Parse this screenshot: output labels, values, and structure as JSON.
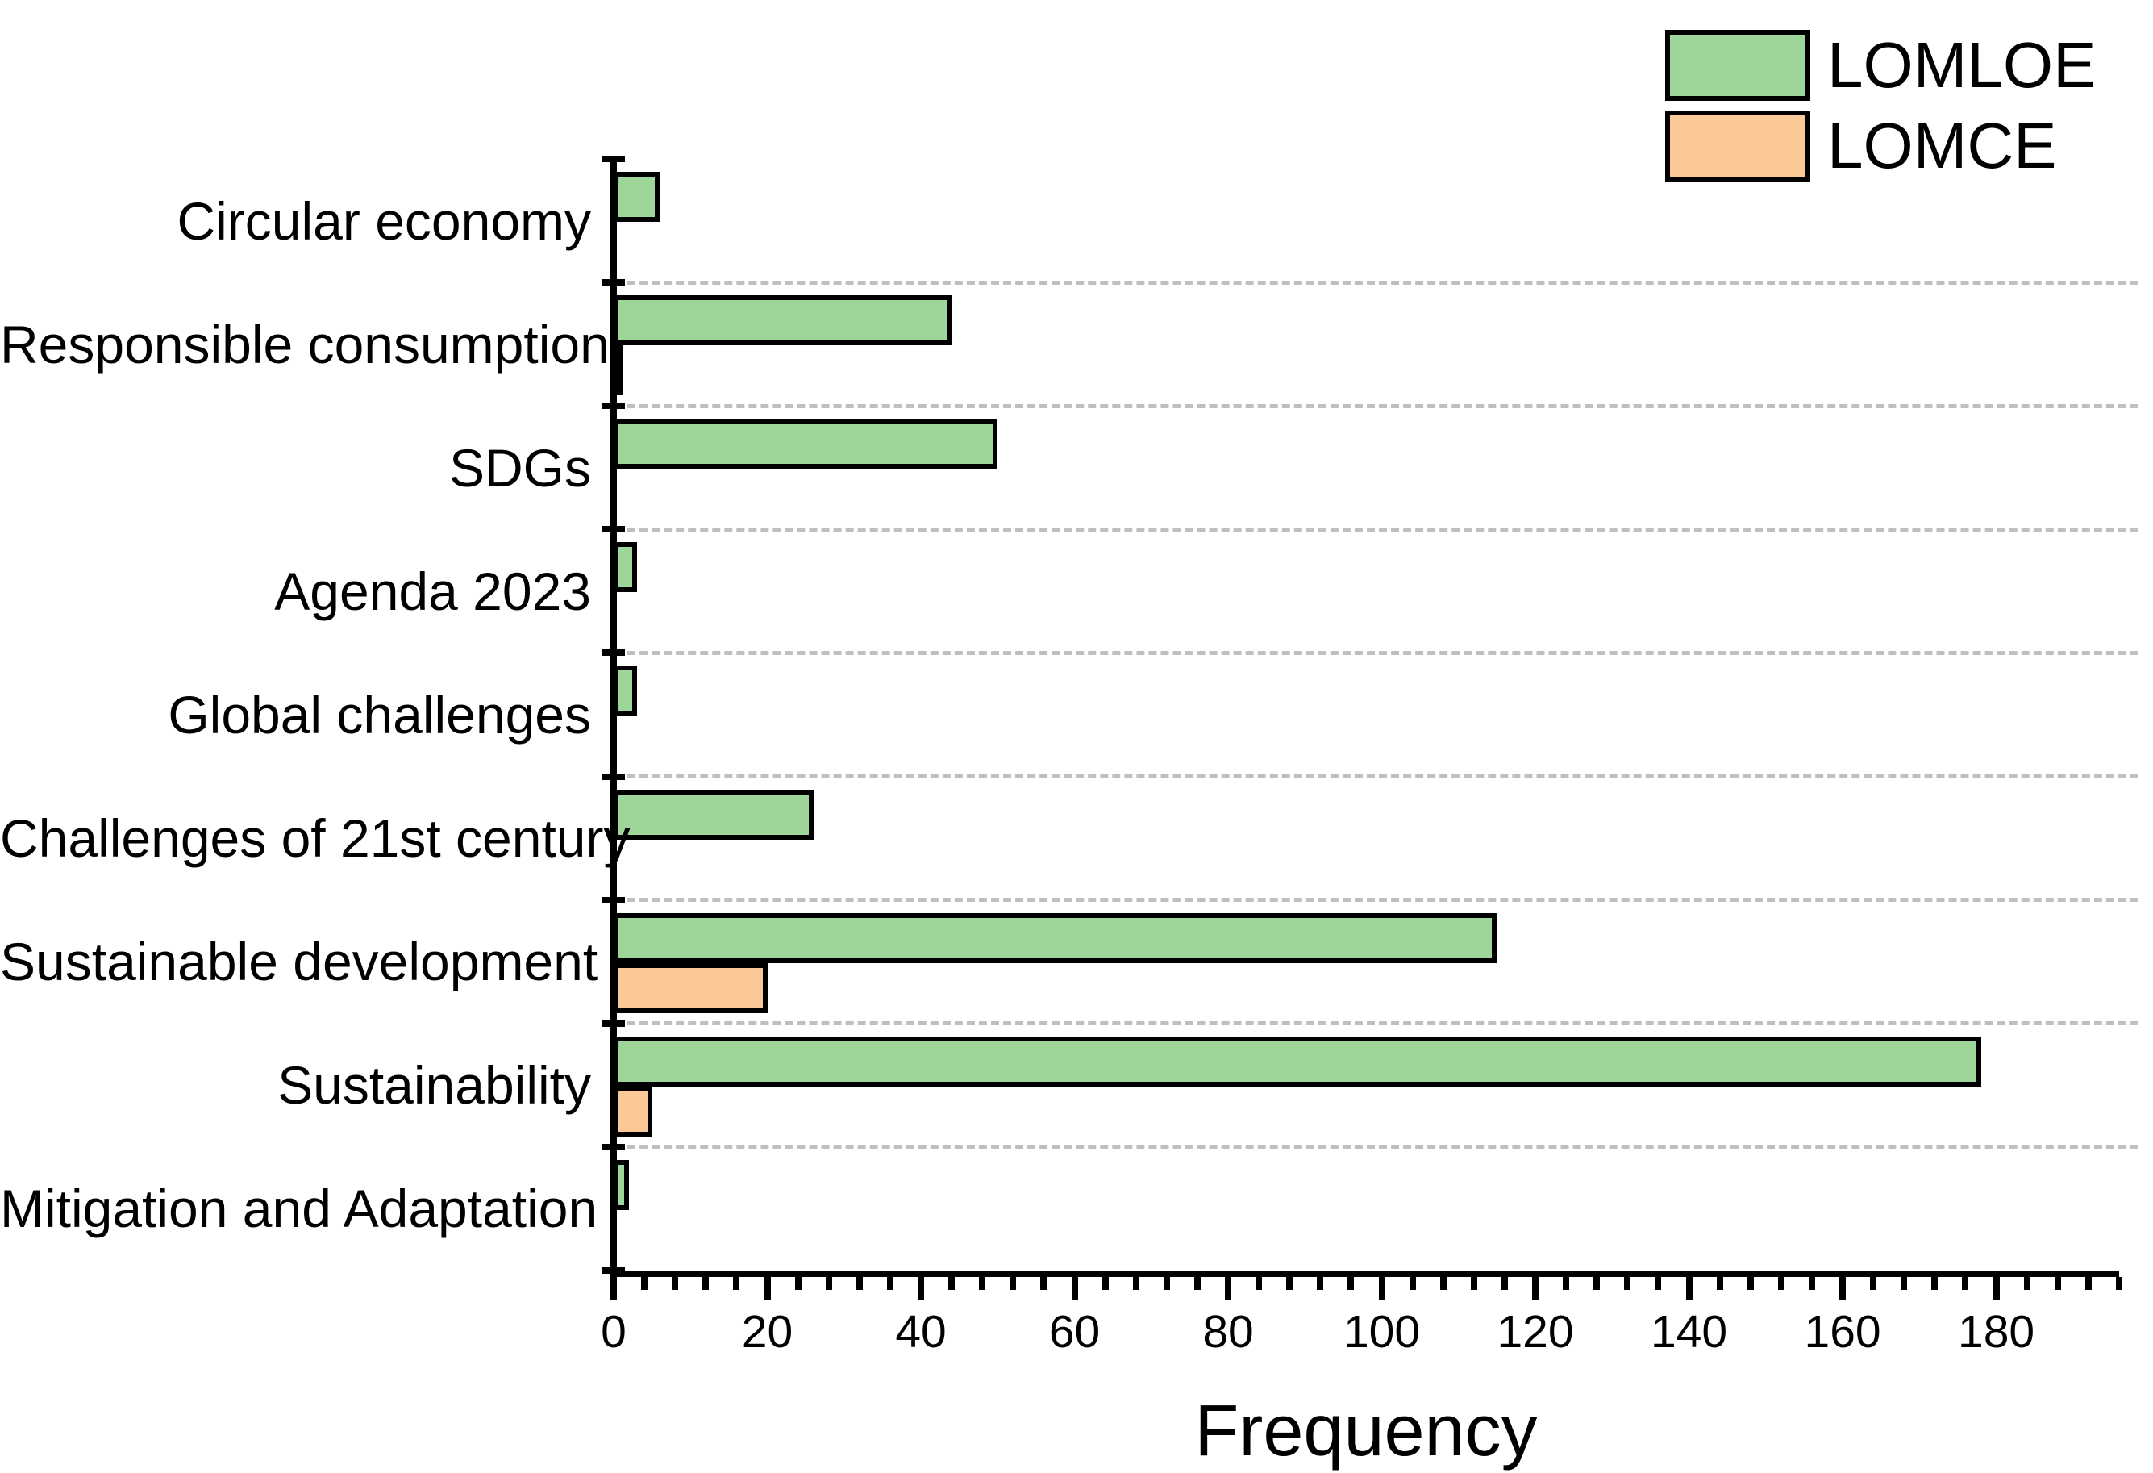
{
  "figure": {
    "background": "#ffffff"
  },
  "legend": {
    "items": [
      {
        "label": "LOMLOE",
        "color": "#9ED598"
      },
      {
        "label": "LOMCE",
        "color": "#FBC997"
      }
    ]
  },
  "chart_data": {
    "type": "bar",
    "orientation": "horizontal",
    "title": "",
    "xlabel": "Frequency",
    "ylabel": "",
    "xlim": [
      0,
      196
    ],
    "x_major_ticks": [
      0,
      20,
      40,
      60,
      80,
      100,
      120,
      140,
      160,
      180
    ],
    "x_minor_tick_step": 4,
    "grid": {
      "show": true,
      "style": "dashed",
      "color": "#BFBFBF",
      "placement": "between-categories"
    },
    "legend_position": "top-right",
    "bar_outline_color": "#000000",
    "categories": [
      "Circular economy",
      "Responsible consumption",
      "SDGs",
      "Agenda 2023",
      "Global challenges",
      "Challenges of 21st century",
      "Sustainable development",
      "Sustainability",
      "Mitigation and Adaptation"
    ],
    "series": [
      {
        "name": "LOMLOE",
        "color": "#9ED598",
        "values": [
          6,
          44,
          50,
          3,
          3,
          26,
          115,
          178,
          2
        ]
      },
      {
        "name": "LOMCE",
        "color": "#FBC997",
        "values": [
          0,
          1,
          0,
          0,
          0,
          0,
          20,
          5,
          0
        ]
      }
    ]
  }
}
